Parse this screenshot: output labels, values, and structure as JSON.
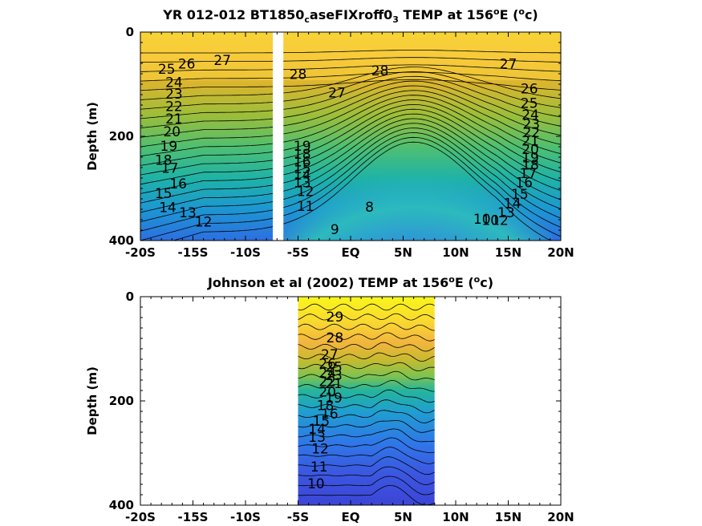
{
  "chart_data": [
    {
      "type": "heatmap",
      "title_parts": {
        "a": "YR 012-012 BT1850",
        "b": "c",
        "c": "aseFIXroff0",
        "d": "3",
        "e": " TEMP at 156",
        "f": "o",
        "g": "E (",
        "h": "o",
        "i": "c)"
      },
      "ylabel": "Depth (m)",
      "x_ticks": [
        "-20S",
        "-15S",
        "-10S",
        "-5S",
        "EQ",
        "5N",
        "10N",
        "15N",
        "20N"
      ],
      "y_ticks": [
        "0",
        "200",
        "400"
      ],
      "xlim": [
        -20,
        20
      ],
      "ylim": [
        0,
        400
      ],
      "data_range": [
        [
          -20,
          -7.4
        ],
        [
          -6.4,
          20
        ]
      ],
      "colormap": "parula",
      "clim": [
        7,
        30
      ],
      "contour_labels": [
        {
          "text": "26",
          "x": -15.6,
          "y": 62
        },
        {
          "text": "27",
          "x": -12.2,
          "y": 55
        },
        {
          "text": "25",
          "x": -17.5,
          "y": 72
        },
        {
          "text": "24",
          "x": -16.8,
          "y": 98
        },
        {
          "text": "23",
          "x": -16.8,
          "y": 120
        },
        {
          "text": "22",
          "x": -16.8,
          "y": 144
        },
        {
          "text": "21",
          "x": -16.8,
          "y": 168
        },
        {
          "text": "20",
          "x": -17.0,
          "y": 192
        },
        {
          "text": "19",
          "x": -17.3,
          "y": 220
        },
        {
          "text": "18",
          "x": -17.8,
          "y": 247
        },
        {
          "text": "17",
          "x": -17.2,
          "y": 262
        },
        {
          "text": "16",
          "x": -16.4,
          "y": 292
        },
        {
          "text": "15",
          "x": -17.8,
          "y": 311
        },
        {
          "text": "14",
          "x": -17.4,
          "y": 338
        },
        {
          "text": "13",
          "x": -15.5,
          "y": 348
        },
        {
          "text": "12",
          "x": -14.0,
          "y": 365
        },
        {
          "text": "28",
          "x": -5.0,
          "y": 82
        },
        {
          "text": "28",
          "x": 2.8,
          "y": 75
        },
        {
          "text": "27",
          "x": -1.3,
          "y": 118
        },
        {
          "text": "27",
          "x": 15.0,
          "y": 62
        },
        {
          "text": "26",
          "x": 17.0,
          "y": 110
        },
        {
          "text": "25",
          "x": 17.0,
          "y": 138
        },
        {
          "text": "24",
          "x": 17.1,
          "y": 160
        },
        {
          "text": "23",
          "x": 17.2,
          "y": 178
        },
        {
          "text": "22",
          "x": 17.2,
          "y": 194
        },
        {
          "text": "21",
          "x": 17.1,
          "y": 210
        },
        {
          "text": "20",
          "x": 17.1,
          "y": 226
        },
        {
          "text": "19",
          "x": 17.1,
          "y": 242
        },
        {
          "text": "18",
          "x": 17.1,
          "y": 256
        },
        {
          "text": "17",
          "x": 16.9,
          "y": 272
        },
        {
          "text": "16",
          "x": 16.5,
          "y": 290
        },
        {
          "text": "15",
          "x": 16.1,
          "y": 312
        },
        {
          "text": "14",
          "x": 15.4,
          "y": 330
        },
        {
          "text": "13",
          "x": 14.8,
          "y": 348
        },
        {
          "text": "12",
          "x": 14.2,
          "y": 362
        },
        {
          "text": "10",
          "x": 12.5,
          "y": 360
        },
        {
          "text": "10",
          "x": 13.3,
          "y": 362
        },
        {
          "text": "19",
          "x": -4.6,
          "y": 220
        },
        {
          "text": "18",
          "x": -4.6,
          "y": 235
        },
        {
          "text": "16",
          "x": -4.6,
          "y": 250
        },
        {
          "text": "15",
          "x": -4.6,
          "y": 263
        },
        {
          "text": "14",
          "x": -4.6,
          "y": 275
        },
        {
          "text": "13",
          "x": -4.6,
          "y": 290
        },
        {
          "text": "12",
          "x": -4.3,
          "y": 307
        },
        {
          "text": "11",
          "x": -4.3,
          "y": 335
        },
        {
          "text": "8",
          "x": 1.8,
          "y": 337
        },
        {
          "text": "9",
          "x": -1.5,
          "y": 380
        }
      ]
    },
    {
      "type": "heatmap",
      "title_parts": {
        "a": "Johnson et al (2002) TEMP at 156",
        "b": "o",
        "c": "E (",
        "d": "o",
        "e": "c)"
      },
      "ylabel": "Depth (m)",
      "x_ticks": [
        "-20S",
        "-15S",
        "-10S",
        "-5S",
        "EQ",
        "5N",
        "10N",
        "15N",
        "20N"
      ],
      "y_ticks": [
        "0",
        "200",
        "400"
      ],
      "xlim": [
        -20,
        20
      ],
      "ylim": [
        0,
        400
      ],
      "data_range": [
        [
          -5,
          8
        ]
      ],
      "colormap": "parula",
      "clim": [
        7,
        30
      ],
      "contour_labels": [
        {
          "text": "29",
          "x": -1.5,
          "y": 40
        },
        {
          "text": "28",
          "x": -1.5,
          "y": 80
        },
        {
          "text": "27",
          "x": -2.0,
          "y": 112
        },
        {
          "text": "26",
          "x": -2.2,
          "y": 130
        },
        {
          "text": "25",
          "x": -1.6,
          "y": 136
        },
        {
          "text": "24",
          "x": -2.2,
          "y": 148
        },
        {
          "text": "23",
          "x": -1.6,
          "y": 152
        },
        {
          "text": "22",
          "x": -2.2,
          "y": 164
        },
        {
          "text": "21",
          "x": -1.6,
          "y": 168
        },
        {
          "text": "20",
          "x": -2.2,
          "y": 184
        },
        {
          "text": "19",
          "x": -1.6,
          "y": 195
        },
        {
          "text": "18",
          "x": -2.4,
          "y": 210
        },
        {
          "text": "16",
          "x": -2.0,
          "y": 226
        },
        {
          "text": "15",
          "x": -2.8,
          "y": 240
        },
        {
          "text": "14",
          "x": -3.2,
          "y": 255
        },
        {
          "text": "13",
          "x": -3.2,
          "y": 271
        },
        {
          "text": "12",
          "x": -2.9,
          "y": 293
        },
        {
          "text": "11",
          "x": -3.0,
          "y": 328
        },
        {
          "text": "10",
          "x": -3.3,
          "y": 360
        }
      ]
    }
  ]
}
